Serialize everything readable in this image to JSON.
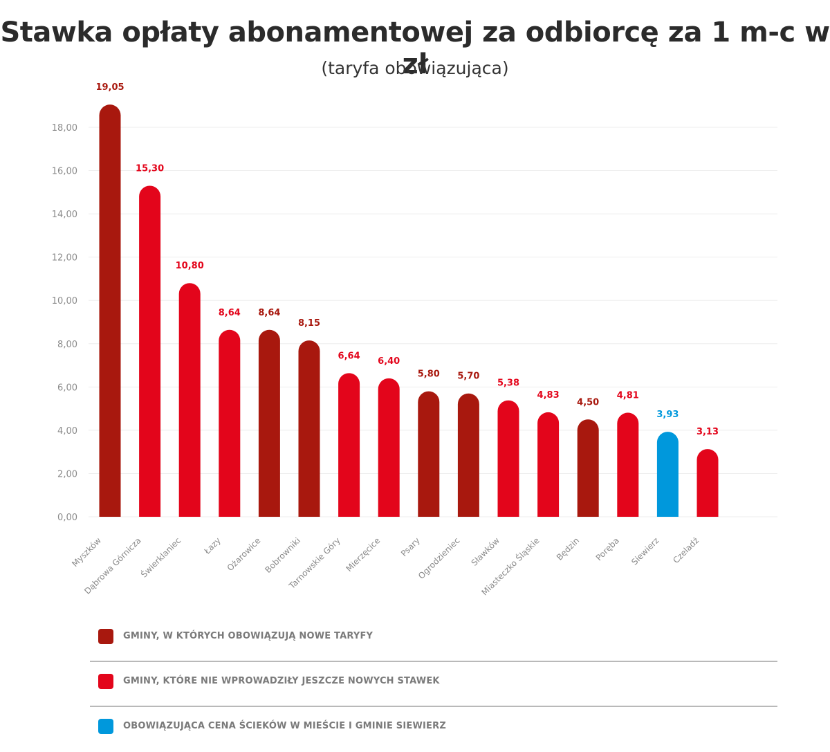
{
  "title": "Stawka opłaty abonamentowej za odbiorcę za 1 m-c w zł",
  "subtitle": "(taryfa obowiązująca)",
  "colors": {
    "new_tariff": "#a8180e",
    "no_new_rates": "#e3051b",
    "siewierz": "#0098dc",
    "grid": "#eeeeee",
    "tick_text": "#8a8a8a"
  },
  "chart_data": {
    "type": "bar",
    "categories": [
      "Myszków",
      "Dąbrowa Górnicza",
      "Świerklaniec",
      "Łazy",
      "Ożarowice",
      "Bobrowniki",
      "Tarnowskie Góry",
      "Mierzęcice",
      "Psary",
      "Ogrodzieniec",
      "Sławków",
      "Miasteczko Śląskie",
      "Będzin",
      "Poręba",
      "Siewierz",
      "Czeladź"
    ],
    "values": [
      19.05,
      15.3,
      10.8,
      8.64,
      8.64,
      8.15,
      6.64,
      6.4,
      5.8,
      5.7,
      5.38,
      4.83,
      4.5,
      4.81,
      3.93,
      3.13
    ],
    "value_labels": [
      "19,05",
      "15,30",
      "10,80",
      "8,64",
      "8,64",
      "8,15",
      "6,64",
      "6,40",
      "5,80",
      "5,70",
      "5,38",
      "4,83",
      "4,50",
      "4,81",
      "3,93",
      "3,13"
    ],
    "groups": [
      "new",
      "no_new",
      "no_new",
      "no_new",
      "new",
      "new",
      "no_new",
      "no_new",
      "new",
      "new",
      "no_new",
      "no_new",
      "new",
      "no_new",
      "siewierz",
      "no_new"
    ],
    "yticks": [
      "0,00",
      "2,00",
      "4,00",
      "6,00",
      "8,00",
      "10,00",
      "12,00",
      "14,00",
      "16,00",
      "18,00"
    ],
    "ylim": [
      0,
      18
    ],
    "grid": true,
    "legend_position": "bottom"
  },
  "legend": [
    {
      "key": "new",
      "label": "GMINY, W KTÓRYCH OBOWIĄZUJĄ NOWE TARYFY"
    },
    {
      "key": "no_new",
      "label": "GMINY, KTÓRE NIE WPROWADZIŁY JESZCZE NOWYCH STAWEK"
    },
    {
      "key": "siewierz",
      "label": "OBOWIĄZUJĄCA CENA ŚCIEKÓW W MIEŚCIE I GMINIE SIEWIERZ"
    }
  ]
}
